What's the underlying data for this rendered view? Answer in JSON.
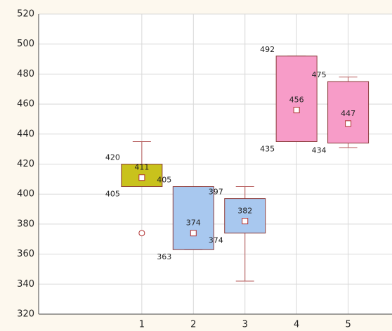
{
  "chart_data": {
    "type": "box",
    "x": [
      1,
      2,
      3,
      4,
      5
    ],
    "xlim": [
      -1,
      5.85
    ],
    "xticks": [
      1,
      2,
      3,
      4,
      5
    ],
    "ylim": [
      320,
      520
    ],
    "yticks": [
      320,
      340,
      360,
      380,
      400,
      420,
      440,
      460,
      480,
      500,
      520
    ],
    "grid": true,
    "boxes": [
      {
        "color": "#c9c21c",
        "low": 405,
        "q1": 405,
        "median": 411,
        "q3": 420,
        "high": 435,
        "outliers": [
          374
        ]
      },
      {
        "color": "#a8c8ef",
        "low": 363,
        "q1": 363,
        "median": 374,
        "q3": 405,
        "high": 405,
        "outliers": []
      },
      {
        "color": "#a8c8ef",
        "low": 342,
        "q1": 374,
        "median": 382,
        "q3": 397,
        "high": 405,
        "outliers": []
      },
      {
        "color": "#f79cc8",
        "low": 435,
        "q1": 435,
        "median": 456,
        "q3": 492,
        "high": 492,
        "outliers": []
      },
      {
        "color": "#f79cc8",
        "low": 431,
        "q1": 434,
        "median": 447,
        "q3": 475,
        "high": 478,
        "outliers": []
      }
    ]
  }
}
